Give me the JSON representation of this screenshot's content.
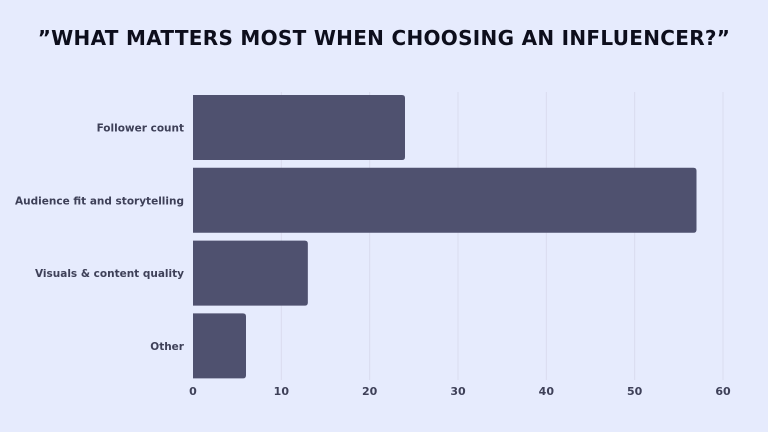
{
  "title": "”WHAT MATTERS MOST WHEN CHOOSING AN INFLUENCER?”",
  "chart_data": {
    "type": "bar",
    "orientation": "horizontal",
    "title": "”WHAT MATTERS MOST WHEN CHOOSING AN INFLUENCER?”",
    "categories": [
      "Follower count",
      "Audience fit and storytelling",
      "Visuals & content quality",
      "Other"
    ],
    "values": [
      24,
      57,
      13,
      6
    ],
    "xlim": [
      0,
      60
    ],
    "xticks": [
      0,
      10,
      20,
      30,
      40,
      50,
      60
    ],
    "xlabel": "",
    "ylabel": "",
    "grid": "vertical",
    "legend": "none",
    "bar_color": "#4f516f",
    "grid_color": "#d9dcef",
    "background": "#e6ebfd"
  }
}
